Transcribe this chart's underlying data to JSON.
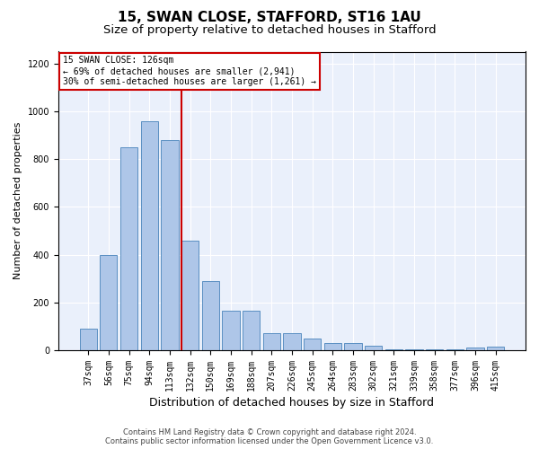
{
  "title": "15, SWAN CLOSE, STAFFORD, ST16 1AU",
  "subtitle": "Size of property relative to detached houses in Stafford",
  "xlabel": "Distribution of detached houses by size in Stafford",
  "ylabel": "Number of detached properties",
  "categories": [
    "37sqm",
    "56sqm",
    "75sqm",
    "94sqm",
    "113sqm",
    "132sqm",
    "150sqm",
    "169sqm",
    "188sqm",
    "207sqm",
    "226sqm",
    "245sqm",
    "264sqm",
    "283sqm",
    "302sqm",
    "321sqm",
    "339sqm",
    "358sqm",
    "377sqm",
    "396sqm",
    "415sqm"
  ],
  "values": [
    90,
    400,
    850,
    960,
    880,
    460,
    290,
    165,
    165,
    70,
    70,
    50,
    30,
    30,
    20,
    5,
    5,
    5,
    5,
    10,
    15
  ],
  "bar_color": "#aec6e8",
  "bar_edgecolor": "#5a8fc2",
  "vline_pos": 4.58,
  "vline_color": "#cc0000",
  "annotation_line1": "15 SWAN CLOSE: 126sqm",
  "annotation_line2": "← 69% of detached houses are smaller (2,941)",
  "annotation_line3": "30% of semi-detached houses are larger (1,261) →",
  "annotation_box_facecolor": "#ffffff",
  "annotation_box_edgecolor": "#cc0000",
  "ylim": [
    0,
    1250
  ],
  "yticks": [
    0,
    200,
    400,
    600,
    800,
    1000,
    1200
  ],
  "footer1": "Contains HM Land Registry data © Crown copyright and database right 2024.",
  "footer2": "Contains public sector information licensed under the Open Government Licence v3.0.",
  "bg_color": "#eaf0fb",
  "title_fontsize": 11,
  "subtitle_fontsize": 9.5,
  "tick_fontsize": 7,
  "ylabel_fontsize": 8,
  "xlabel_fontsize": 9,
  "footer_fontsize": 6,
  "annot_fontsize": 7
}
